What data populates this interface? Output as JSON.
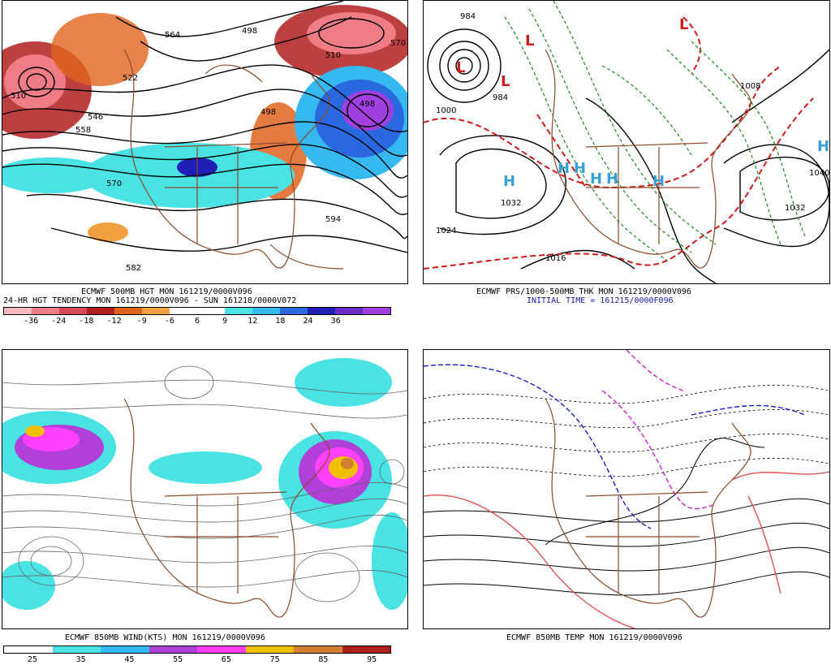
{
  "panels": {
    "tl": {
      "caption1": "ECMWF 500MB HGT MON 161219/0000V096",
      "caption2": "24-HR HGT TENDENCY MON 161219/0000V096 - SUN 161218/0000V072",
      "contour_labels": [
        "564",
        "498",
        "522",
        "510",
        "546",
        "558",
        "570",
        "498",
        "510",
        "570",
        "582",
        "594",
        "498"
      ],
      "colorbar": {
        "colors": [
          "#f7b9c2",
          "#ef7d86",
          "#d84a52",
          "#b01e1e",
          "#e0641e",
          "#f0a040",
          "#ffffff",
          "#ffffff",
          "#49e3e3",
          "#36b8f0",
          "#2a68e0",
          "#2020b8",
          "#6a2cc8",
          "#a040e0"
        ],
        "labels": [
          "-36",
          "-24",
          "-18",
          "-12",
          "-9",
          "-6",
          "6",
          "9",
          "12",
          "18",
          "24",
          "36"
        ]
      }
    },
    "tr": {
      "caption1": "ECMWF PRS/1000-500MB THK MON 161219/0000V096",
      "caption2": "INITIAL TIME = 161215/0000F096",
      "pressure_labels": [
        "984",
        "1000",
        "1032",
        "1024",
        "1016",
        "1032",
        "1040",
        "1008",
        "984"
      ],
      "highs_lows": [
        "L",
        "L",
        "L",
        "L",
        "H",
        "H",
        "H",
        "H",
        "H",
        "H",
        "H"
      ]
    },
    "bl": {
      "caption1": "ECMWF 850MB WIND(KTS) MON 161219/0000V096",
      "colorbar": {
        "colors": [
          "#ffffff",
          "#49e3e3",
          "#36b8f0",
          "#b040d8",
          "#ff40ff",
          "#f0c000",
          "#d08030",
          "#b01e1e"
        ],
        "labels": [
          "25",
          "35",
          "45",
          "55",
          "65",
          "75",
          "85",
          "95"
        ]
      }
    },
    "br": {
      "caption1": "ECMWF 850MB TEMP MON 161219/0000V096"
    }
  }
}
